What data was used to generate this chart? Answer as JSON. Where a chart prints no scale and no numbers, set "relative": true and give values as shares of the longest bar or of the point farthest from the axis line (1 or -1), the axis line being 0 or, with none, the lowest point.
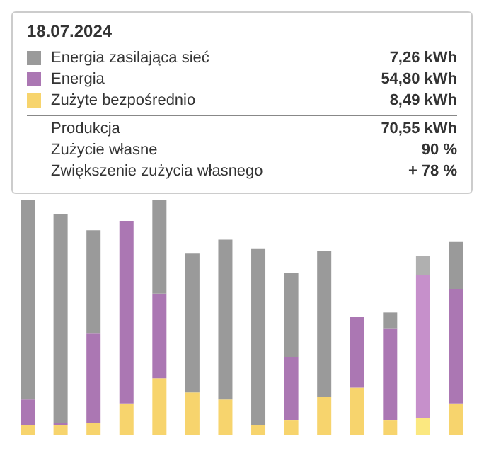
{
  "chart_data": {
    "type": "bar",
    "title": "18.07.2024",
    "relative": true,
    "stacked": true,
    "legend": "top",
    "categories": [
      null,
      null,
      null,
      null,
      null,
      null,
      null,
      null,
      null,
      null,
      null,
      null,
      null,
      null
    ],
    "series": [
      {
        "name": "Zużyte bezpośrednio",
        "color": "#f7d46d",
        "colors": [
          "#f7d46d",
          "#f7d46d",
          "#f7d46d",
          "#f7d46d",
          "#f7d46d",
          "#f7d46d",
          "#f7d46d",
          "#f7d46d",
          "#f7d46d",
          "#f7d46d",
          "#f7d46d",
          "#f7d46d",
          "#fbe880",
          "#f7d46d"
        ],
        "values": [
          0.04,
          0.04,
          0.05,
          0.13,
          0.24,
          0.18,
          0.15,
          0.04,
          0.06,
          0.16,
          0.2,
          0.06,
          0.07,
          0.13
        ]
      },
      {
        "name": "Energia",
        "color": "#ab77b3",
        "colors": [
          "#ab77b3",
          "#ab77b3",
          "#ab77b3",
          "#ab77b3",
          "#ab77b3",
          "#ab77b3",
          "#ab77b3",
          "#ab77b3",
          "#ab77b3",
          "#ab77b3",
          "#ab77b3",
          "#ab77b3",
          "#c690cb",
          "#ab77b3"
        ],
        "values": [
          0.11,
          0.01,
          0.38,
          0.78,
          0.36,
          0,
          0,
          0,
          0.27,
          0,
          0.3,
          0.39,
          0.61,
          0.49
        ]
      },
      {
        "name": "Energia zasilająca sieć",
        "color": "#9a9a9a",
        "colors": [
          "#9a9a9a",
          "#9a9a9a",
          "#9a9a9a",
          "#9a9a9a",
          "#9a9a9a",
          "#9a9a9a",
          "#9a9a9a",
          "#9a9a9a",
          "#9a9a9a",
          "#9a9a9a",
          "#9a9a9a",
          "#9a9a9a",
          "#b0b0b0",
          "#9a9a9a"
        ],
        "values": [
          0.85,
          0.89,
          0.44,
          0,
          0.4,
          0.59,
          0.68,
          0.75,
          0.36,
          0.62,
          0,
          0.07,
          0.08,
          0.2
        ]
      }
    ],
    "annotations": [
      "8,49 kWh",
      "54,80 kWh",
      "7,26 kWh",
      "Produkcja",
      "70,55 kWh",
      "Zużycie własne",
      "90 %",
      "Zwiększenie zużycia własnego",
      "+ 78 %"
    ]
  }
}
